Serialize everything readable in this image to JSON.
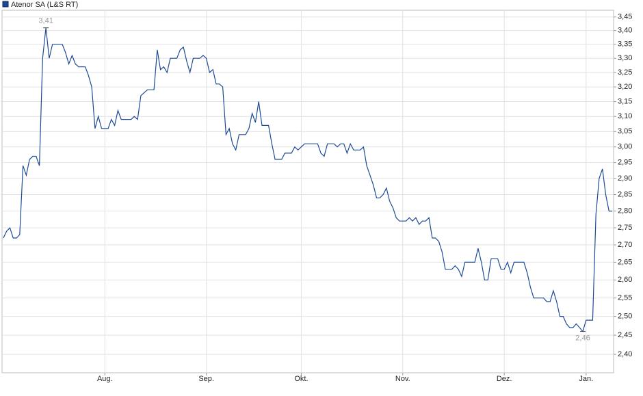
{
  "chart_data": {
    "type": "line",
    "series": [
      {
        "name": "Atenor SA (L&S RT)",
        "color": "#1c4a94",
        "values": [
          2.72,
          2.74,
          2.75,
          2.72,
          2.72,
          2.73,
          2.94,
          2.91,
          2.96,
          2.97,
          2.97,
          2.94,
          3.3,
          3.41,
          3.3,
          3.35,
          3.35,
          3.35,
          3.35,
          3.32,
          3.28,
          3.31,
          3.28,
          3.27,
          3.27,
          3.27,
          3.24,
          3.2,
          3.06,
          3.1,
          3.06,
          3.06,
          3.06,
          3.09,
          3.07,
          3.12,
          3.09,
          3.09,
          3.09,
          3.09,
          3.1,
          3.09,
          3.17,
          3.18,
          3.19,
          3.19,
          3.19,
          3.33,
          3.26,
          3.27,
          3.25,
          3.3,
          3.3,
          3.3,
          3.33,
          3.34,
          3.29,
          3.25,
          3.3,
          3.3,
          3.3,
          3.31,
          3.3,
          3.25,
          3.26,
          3.21,
          3.21,
          3.2,
          3.04,
          3.06,
          3.01,
          2.99,
          3.04,
          3.04,
          3.04,
          3.06,
          3.11,
          3.08,
          3.15,
          3.07,
          3.07,
          3.07,
          3.01,
          2.96,
          2.96,
          2.96,
          2.98,
          2.98,
          2.98,
          3.0,
          2.99,
          3.0,
          3.01,
          3.01,
          3.01,
          3.01,
          3.01,
          2.98,
          2.97,
          3.01,
          3.01,
          3.01,
          3.0,
          3.01,
          3.01,
          2.98,
          3.01,
          2.99,
          2.99,
          2.99,
          3.0,
          2.94,
          2.91,
          2.88,
          2.84,
          2.84,
          2.85,
          2.87,
          2.83,
          2.81,
          2.78,
          2.77,
          2.77,
          2.77,
          2.78,
          2.77,
          2.78,
          2.76,
          2.77,
          2.77,
          2.78,
          2.72,
          2.72,
          2.71,
          2.68,
          2.63,
          2.63,
          2.63,
          2.64,
          2.63,
          2.61,
          2.65,
          2.65,
          2.65,
          2.65,
          2.69,
          2.65,
          2.6,
          2.6,
          2.66,
          2.66,
          2.66,
          2.63,
          2.63,
          2.65,
          2.62,
          2.65,
          2.65,
          2.65,
          2.65,
          2.62,
          2.58,
          2.55,
          2.55,
          2.55,
          2.55,
          2.54,
          2.54,
          2.57,
          2.54,
          2.5,
          2.5,
          2.48,
          2.47,
          2.47,
          2.48,
          2.47,
          2.46,
          2.49,
          2.49,
          2.49,
          2.79,
          2.9,
          2.93,
          2.85,
          2.8,
          2.8
        ]
      }
    ],
    "high": {
      "value": 3.41,
      "label": "3,41"
    },
    "low": {
      "value": 2.46,
      "label": "2,46"
    },
    "log_y": true,
    "ylim": [
      2.353,
      3.475
    ],
    "yticks": [
      {
        "value": 2.4,
        "label": "2,40"
      },
      {
        "value": 2.45,
        "label": "2,45"
      },
      {
        "value": 2.5,
        "label": "2,50"
      },
      {
        "value": 2.55,
        "label": "2,55"
      },
      {
        "value": 2.6,
        "label": "2,60"
      },
      {
        "value": 2.65,
        "label": "2,65"
      },
      {
        "value": 2.7,
        "label": "2,70"
      },
      {
        "value": 2.75,
        "label": "2,75"
      },
      {
        "value": 2.8,
        "label": "2,80"
      },
      {
        "value": 2.85,
        "label": "2,85"
      },
      {
        "value": 2.9,
        "label": "2,90"
      },
      {
        "value": 2.95,
        "label": "2,95"
      },
      {
        "value": 3.0,
        "label": "3,00"
      },
      {
        "value": 3.05,
        "label": "3,05"
      },
      {
        "value": 3.1,
        "label": "3,10"
      },
      {
        "value": 3.15,
        "label": "3,15"
      },
      {
        "value": 3.2,
        "label": "3,20"
      },
      {
        "value": 3.25,
        "label": "3,25"
      },
      {
        "value": 3.3,
        "label": "3,30"
      },
      {
        "value": 3.35,
        "label": "3,35"
      },
      {
        "value": 3.4,
        "label": "3,40"
      },
      {
        "value": 3.45,
        "label": "3,45"
      }
    ],
    "xlim": [
      -0.4,
      186.4
    ],
    "xticks": [
      {
        "value": 31,
        "label": "Aug."
      },
      {
        "value": 62,
        "label": "Sep."
      },
      {
        "value": 91,
        "label": "Okt."
      },
      {
        "value": 122,
        "label": "Nov."
      },
      {
        "value": 153,
        "label": "Dez."
      },
      {
        "value": 178,
        "label": "Jan."
      }
    ],
    "grid": true
  }
}
